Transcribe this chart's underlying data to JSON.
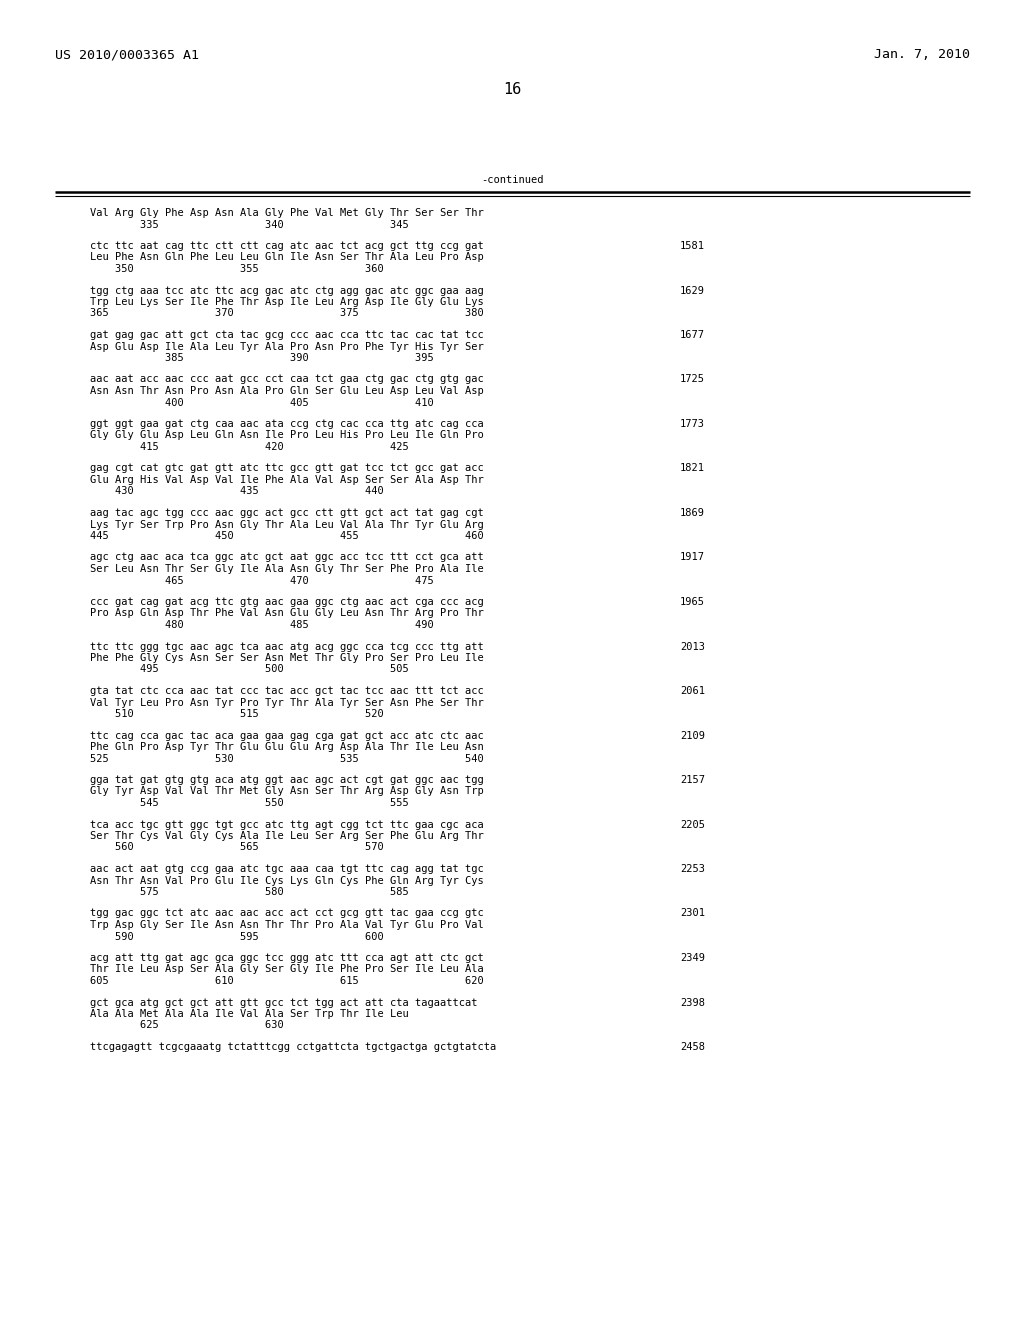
{
  "header_left": "US 2010/0003365 A1",
  "header_right": "Jan. 7, 2010",
  "page_number": "16",
  "continued_label": "-continued",
  "background_color": "#ffffff",
  "text_color": "#000000",
  "font_size": 7.5,
  "header_font_size": 9.5,
  "page_num_font_size": 11,
  "blocks": [
    {
      "dna": "",
      "dna_num": "",
      "aa": "Val Arg Gly Phe Asp Asn Ala Gly Phe Val Met Gly Thr Ser Ser Thr",
      "nums": "        335                 340                 345"
    },
    {
      "dna": "ctc ttc aat cag ttc ctt ctt cag atc aac tct acg gct ttg ccg gat",
      "dna_num": "1581",
      "aa": "Leu Phe Asn Gln Phe Leu Leu Gln Ile Asn Ser Thr Ala Leu Pro Asp",
      "nums": "    350                 355                 360"
    },
    {
      "dna": "tgg ctg aaa tcc atc ttc acg gac atc ctg agg gac atc ggc gaa aag",
      "dna_num": "1629",
      "aa": "Trp Leu Lys Ser Ile Phe Thr Asp Ile Leu Arg Asp Ile Gly Glu Lys",
      "nums": "365                 370                 375                 380"
    },
    {
      "dna": "gat gag gac att gct cta tac gcg ccc aac cca ttc tac cac tat tcc",
      "dna_num": "1677",
      "aa": "Asp Glu Asp Ile Ala Leu Tyr Ala Pro Asn Pro Phe Tyr His Tyr Ser",
      "nums": "            385                 390                 395"
    },
    {
      "dna": "aac aat acc aac ccc aat gcc cct caa tct gaa ctg gac ctg gtg gac",
      "dna_num": "1725",
      "aa": "Asn Asn Thr Asn Pro Asn Ala Pro Gln Ser Glu Leu Asp Leu Val Asp",
      "nums": "            400                 405                 410"
    },
    {
      "dna": "ggt ggt gaa gat ctg caa aac ata ccg ctg cac cca ttg atc cag cca",
      "dna_num": "1773",
      "aa": "Gly Gly Glu Asp Leu Gln Asn Ile Pro Leu His Pro Leu Ile Gln Pro",
      "nums": "        415                 420                 425"
    },
    {
      "dna": "gag cgt cat gtc gat gtt atc ttc gcc gtt gat tcc tct gcc gat acc",
      "dna_num": "1821",
      "aa": "Glu Arg His Val Asp Val Ile Phe Ala Val Asp Ser Ser Ala Asp Thr",
      "nums": "    430                 435                 440"
    },
    {
      "dna": "aag tac agc tgg ccc aac ggc act gcc ctt gtt gct act tat gag cgt",
      "dna_num": "1869",
      "aa": "Lys Tyr Ser Trp Pro Asn Gly Thr Ala Leu Val Ala Thr Tyr Glu Arg",
      "nums": "445                 450                 455                 460"
    },
    {
      "dna": "agc ctg aac aca tca ggc atc gct aat ggc acc tcc ttt cct gca att",
      "dna_num": "1917",
      "aa": "Ser Leu Asn Thr Ser Gly Ile Ala Asn Gly Thr Ser Phe Pro Ala Ile",
      "nums": "            465                 470                 475"
    },
    {
      "dna": "ccc gat cag gat acg ttc gtg aac gaa ggc ctg aac act cga ccc acg",
      "dna_num": "1965",
      "aa": "Pro Asp Gln Asp Thr Phe Val Asn Glu Gly Leu Asn Thr Arg Pro Thr",
      "nums": "            480                 485                 490"
    },
    {
      "dna": "ttc ttc ggg tgc aac agc tca aac atg acg ggc cca tcg ccc ttg att",
      "dna_num": "2013",
      "aa": "Phe Phe Gly Cys Asn Ser Ser Asn Met Thr Gly Pro Ser Pro Leu Ile",
      "nums": "        495                 500                 505"
    },
    {
      "dna": "gta tat ctc cca aac tat ccc tac acc gct tac tcc aac ttt tct acc",
      "dna_num": "2061",
      "aa": "Val Tyr Leu Pro Asn Tyr Pro Tyr Thr Ala Tyr Ser Asn Phe Ser Thr",
      "nums": "    510                 515                 520"
    },
    {
      "dna": "ttc cag cca gac tac aca gaa gaa gag cga gat gct acc atc ctc aac",
      "dna_num": "2109",
      "aa": "Phe Gln Pro Asp Tyr Thr Glu Glu Glu Arg Asp Ala Thr Ile Leu Asn",
      "nums": "525                 530                 535                 540"
    },
    {
      "dna": "gga tat gat gtg gtg aca atg ggt aac agc act cgt gat ggc aac tgg",
      "dna_num": "2157",
      "aa": "Gly Tyr Asp Val Val Thr Met Gly Asn Ser Thr Arg Asp Gly Asn Trp",
      "nums": "        545                 550                 555"
    },
    {
      "dna": "tca acc tgc gtt ggc tgt gcc atc ttg agt cgg tct ttc gaa cgc aca",
      "dna_num": "2205",
      "aa": "Ser Thr Cys Val Gly Cys Ala Ile Leu Ser Arg Ser Phe Glu Arg Thr",
      "nums": "    560                 565                 570"
    },
    {
      "dna": "aac act aat gtg ccg gaa atc tgc aaa caa tgt ttc cag agg tat tgc",
      "dna_num": "2253",
      "aa": "Asn Thr Asn Val Pro Glu Ile Cys Lys Gln Cys Phe Gln Arg Tyr Cys",
      "nums": "        575                 580                 585"
    },
    {
      "dna": "tgg gac ggc tct atc aac aac acc act cct gcg gtt tac gaa ccg gtc",
      "dna_num": "2301",
      "aa": "Trp Asp Gly Ser Ile Asn Asn Thr Thr Pro Ala Val Tyr Glu Pro Val",
      "nums": "    590                 595                 600"
    },
    {
      "dna": "acg att ttg gat agc gca ggc tcc ggg atc ttt cca agt att ctc gct",
      "dna_num": "2349",
      "aa": "Thr Ile Leu Asp Ser Ala Gly Ser Gly Ile Phe Pro Ser Ile Leu Ala",
      "nums": "605                 610                 615                 620"
    },
    {
      "dna": "gct gca atg gct gct att gtt gcc tct tgg act att cta tagaattcat",
      "dna_num": "2398",
      "aa": "Ala Ala Met Ala Ala Ile Val Ala Ser Trp Thr Ile Leu",
      "nums": "        625                 630"
    },
    {
      "dna": "ttcgagagtt tcgcgaaatg tctatttcgg cctgattcta tgctgactga gctgtatcta",
      "dna_num": "2458",
      "aa": "",
      "nums": ""
    }
  ]
}
